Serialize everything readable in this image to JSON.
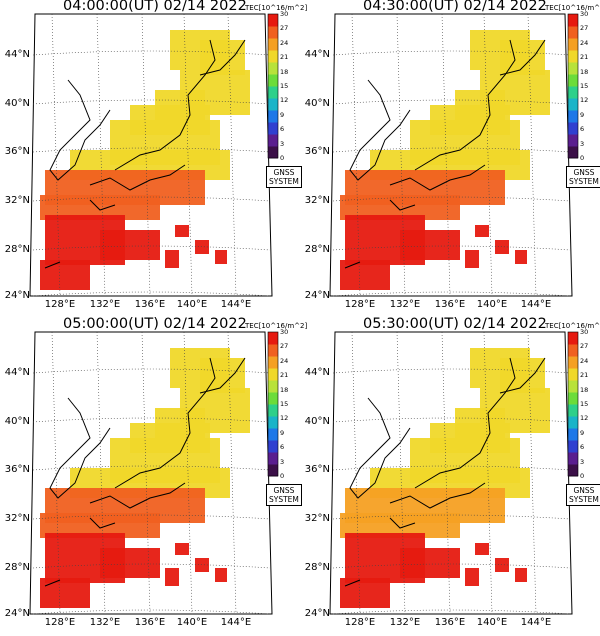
{
  "panels": [
    {
      "title": "04:00:00(UT) 02/14 2022",
      "scheme": "a"
    },
    {
      "title": "04:30:00(UT) 02/14 2022",
      "scheme": "b"
    },
    {
      "title": "05:00:00(UT) 02/14 2022",
      "scheme": "c"
    },
    {
      "title": "05:30:00(UT) 02/14 2022",
      "scheme": "d"
    }
  ],
  "colorbar": {
    "title": "TEC[10^16/m^2]",
    "ticks": [
      "30",
      "27",
      "24",
      "21",
      "18",
      "15",
      "12",
      "9",
      "6",
      "3",
      "0"
    ],
    "colors": [
      "#3b0f48",
      "#5a1e8f",
      "#3040d0",
      "#1e78e8",
      "#1ab4c8",
      "#2ed08a",
      "#6cdc3a",
      "#b8e23a",
      "#f0d82a",
      "#f5a023",
      "#f06020",
      "#e61a10"
    ]
  },
  "latitude_labels": [
    "44°N",
    "40°N",
    "36°N",
    "32°N",
    "28°N",
    "24°N"
  ],
  "longitude_labels": [
    "128°E",
    "132°E",
    "136°E",
    "140°E",
    "144°E"
  ],
  "stamp": {
    "line1": "GNSS",
    "line2": "SYSTEM"
  },
  "tec_levels": {
    "a": {
      "north": 21,
      "central": 22,
      "south_coast": 27,
      "sea": 30
    },
    "b": {
      "north": 22,
      "central": 23,
      "south_coast": 28,
      "sea": 30
    },
    "c": {
      "north": 21,
      "central": 22,
      "south_coast": 26,
      "sea": 30
    },
    "d": {
      "north": 21,
      "central": 21,
      "south_coast": 25,
      "sea": 30
    }
  }
}
